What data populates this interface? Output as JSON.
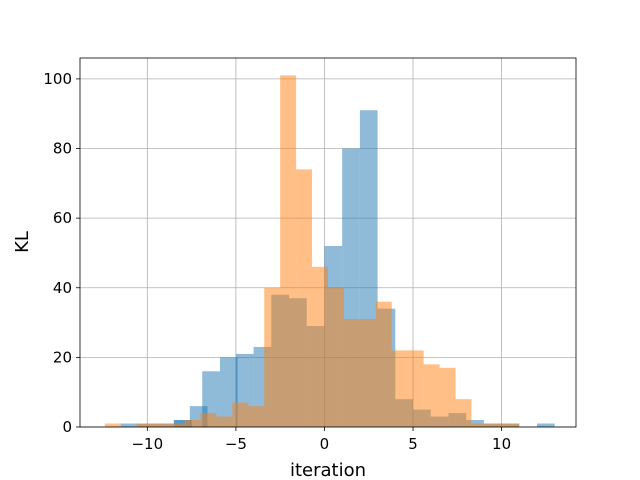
{
  "chart_data": {
    "type": "bar",
    "title": "",
    "xlabel": "iteration",
    "ylabel": "KL",
    "xlim": [
      -13.8,
      14.2
    ],
    "ylim": [
      0,
      106
    ],
    "xticks": [
      -10,
      -5,
      0,
      5,
      10
    ],
    "xtick_labels": [
      "−10",
      "−5",
      "0",
      "5",
      "10"
    ],
    "yticks": [
      0,
      20,
      40,
      60,
      80,
      100
    ],
    "ytick_labels": [
      "0",
      "20",
      "40",
      "60",
      "80",
      "100"
    ],
    "grid": true,
    "legend": "none",
    "series": [
      {
        "color": "#1f77b4",
        "alpha": 0.5,
        "bin_width": 1.0,
        "bins": [
          {
            "x0": -11.5,
            "value": 1
          },
          {
            "x0": -10.5,
            "value": 1
          },
          {
            "x0": -9.5,
            "value": 1
          },
          {
            "x0": -8.5,
            "value": 2
          },
          {
            "x0": -8.5,
            "value": 2
          },
          {
            "x0": -7.6,
            "value": 6
          },
          {
            "x0": -6.9,
            "value": 16
          },
          {
            "x0": -5.9,
            "value": 20
          },
          {
            "x0": -5.0,
            "value": 21
          },
          {
            "x0": -4.0,
            "value": 23
          },
          {
            "x0": -3.0,
            "value": 38
          },
          {
            "x0": -2.0,
            "value": 37
          },
          {
            "x0": -1.0,
            "value": 29
          },
          {
            "x0": 0.0,
            "value": 52
          },
          {
            "x0": 1.0,
            "value": 80
          },
          {
            "x0": 2.0,
            "value": 91
          },
          {
            "x0": 3.0,
            "value": 34
          },
          {
            "x0": 4.0,
            "value": 8
          },
          {
            "x0": 5.0,
            "value": 5
          },
          {
            "x0": 6.0,
            "value": 3
          },
          {
            "x0": 7.0,
            "value": 4
          },
          {
            "x0": 8.0,
            "value": 2
          },
          {
            "x0": 9.0,
            "value": 1
          },
          {
            "x0": 10.0,
            "value": 1
          },
          {
            "x0": 12.0,
            "value": 1
          }
        ]
      },
      {
        "color": "#ff7f0e",
        "alpha": 0.5,
        "bin_width": 0.9,
        "bins": [
          {
            "x0": -12.4,
            "value": 1
          },
          {
            "x0": -10.6,
            "value": 1
          },
          {
            "x0": -9.7,
            "value": 1
          },
          {
            "x0": -8.8,
            "value": 1
          },
          {
            "x0": -7.9,
            "value": 2
          },
          {
            "x0": -7.0,
            "value": 4
          },
          {
            "x0": -6.1,
            "value": 3
          },
          {
            "x0": -5.2,
            "value": 7
          },
          {
            "x0": -4.3,
            "value": 6
          },
          {
            "x0": -3.4,
            "value": 40
          },
          {
            "x0": -2.5,
            "value": 101
          },
          {
            "x0": -1.6,
            "value": 74
          },
          {
            "x0": -0.7,
            "value": 46
          },
          {
            "x0": 0.2,
            "value": 40
          },
          {
            "x0": 1.1,
            "value": 31
          },
          {
            "x0": 2.0,
            "value": 31
          },
          {
            "x0": 2.9,
            "value": 36
          },
          {
            "x0": 3.8,
            "value": 22
          },
          {
            "x0": 4.7,
            "value": 22
          },
          {
            "x0": 5.6,
            "value": 18
          },
          {
            "x0": 6.5,
            "value": 17
          },
          {
            "x0": 7.4,
            "value": 8
          },
          {
            "x0": 8.3,
            "value": 1
          },
          {
            "x0": 9.2,
            "value": 1
          },
          {
            "x0": 10.1,
            "value": 1
          }
        ]
      }
    ]
  }
}
